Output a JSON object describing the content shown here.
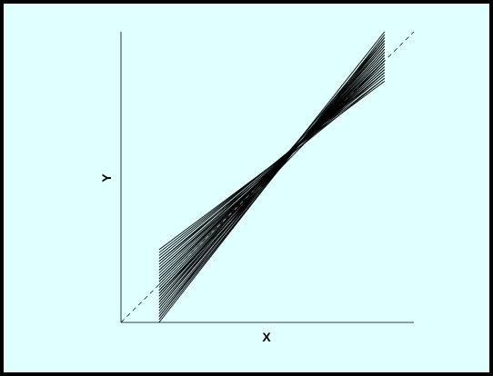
{
  "colors": {
    "background": "#e0ffff",
    "border": "#000000",
    "lines": "#000000",
    "reference_line": "#000000"
  },
  "chart_data": {
    "type": "line",
    "title": "",
    "xlabel": "X",
    "ylabel": "Y",
    "xlim": [
      0,
      1
    ],
    "ylim": [
      0,
      1
    ],
    "grid": false,
    "legend": "none",
    "reference_line": {
      "style": "dashed",
      "x": [
        0,
        1
      ],
      "y": [
        0,
        1
      ]
    },
    "line_x_range": [
      0.13,
      0.9
    ],
    "series": [
      {
        "values": [
          0.0,
          0.99
        ]
      },
      {
        "values": [
          0.01,
          0.98
        ]
      },
      {
        "values": [
          0.02,
          0.97
        ]
      },
      {
        "values": [
          0.03,
          0.97
        ]
      },
      {
        "values": [
          0.04,
          0.96
        ]
      },
      {
        "values": [
          0.05,
          0.96
        ]
      },
      {
        "values": [
          0.06,
          0.95
        ]
      },
      {
        "values": [
          0.07,
          0.94
        ]
      },
      {
        "values": [
          0.08,
          0.94
        ]
      },
      {
        "values": [
          0.09,
          0.93
        ]
      },
      {
        "values": [
          0.1,
          0.93
        ]
      },
      {
        "values": [
          0.11,
          0.92
        ]
      },
      {
        "values": [
          0.11,
          0.92
        ]
      },
      {
        "values": [
          0.12,
          0.91
        ]
      },
      {
        "values": [
          0.13,
          0.91
        ]
      },
      {
        "values": [
          0.14,
          0.9
        ]
      },
      {
        "values": [
          0.15,
          0.9
        ]
      },
      {
        "values": [
          0.15,
          0.89
        ]
      },
      {
        "values": [
          0.16,
          0.89
        ]
      },
      {
        "values": [
          0.17,
          0.88
        ]
      },
      {
        "values": [
          0.18,
          0.88
        ]
      },
      {
        "values": [
          0.19,
          0.87
        ]
      },
      {
        "values": [
          0.2,
          0.87
        ]
      },
      {
        "values": [
          0.21,
          0.86
        ]
      },
      {
        "values": [
          0.22,
          0.86
        ]
      },
      {
        "values": [
          0.23,
          0.85
        ]
      },
      {
        "values": [
          0.24,
          0.84
        ]
      },
      {
        "values": [
          0.25,
          0.83
        ]
      },
      {
        "values": [
          0.02,
          1.0
        ]
      },
      {
        "values": [
          0.05,
          0.98
        ]
      },
      {
        "values": [
          0.09,
          0.95
        ]
      },
      {
        "values": [
          0.14,
          0.91
        ]
      },
      {
        "values": [
          0.18,
          0.86
        ]
      },
      {
        "values": [
          0.21,
          0.84
        ]
      },
      {
        "values": [
          0.1,
          0.9
        ]
      },
      {
        "values": [
          0.07,
          0.97
        ]
      }
    ]
  }
}
